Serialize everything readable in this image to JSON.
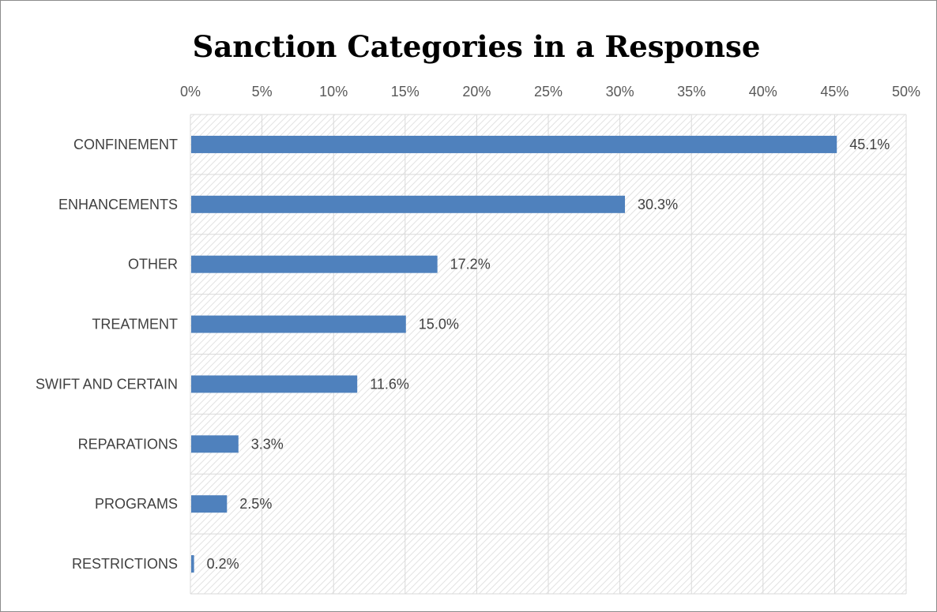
{
  "chart_data": {
    "type": "bar",
    "orientation": "horizontal",
    "title": "Sanction Categories in a Response",
    "categories": [
      "CONFINEMENT",
      "ENHANCEMENTS",
      "OTHER",
      "TREATMENT",
      "SWIFT AND CERTAIN",
      "REPARATIONS",
      "PROGRAMS",
      "RESTRICTIONS"
    ],
    "values": [
      45.1,
      30.3,
      17.2,
      15.0,
      11.6,
      3.3,
      2.5,
      0.2
    ],
    "data_labels": [
      "45.1%",
      "30.3%",
      "17.2%",
      "15.0%",
      "11.6%",
      "3.3%",
      "2.5%",
      "0.2%"
    ],
    "x_ticks": [
      "0%",
      "5%",
      "10%",
      "15%",
      "20%",
      "25%",
      "30%",
      "35%",
      "40%",
      "45%",
      "50%"
    ],
    "xlim": [
      0,
      50
    ],
    "xlabel": "",
    "ylabel": "",
    "x_axis_position": "top",
    "grid": true,
    "plot_background": "diagonal-hatch",
    "colors": {
      "bar": "#4f81bd",
      "grid": "#d9d9d9",
      "hatch": "#e2e2e2"
    }
  }
}
